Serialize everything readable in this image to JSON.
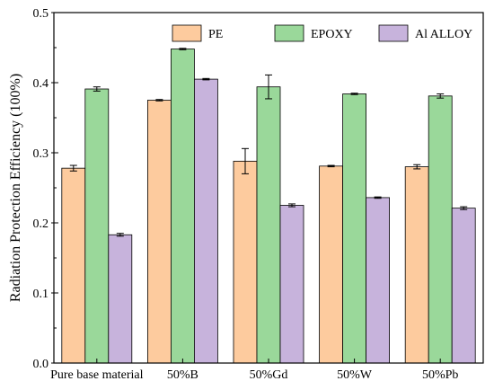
{
  "chart_data": {
    "type": "bar",
    "categories": [
      "Pure base material",
      "50%B",
      "50%Gd",
      "50%W",
      "50%Pb"
    ],
    "series": [
      {
        "name": "PE",
        "color": "#FDCB9E",
        "values": [
          0.278,
          0.375,
          0.288,
          0.281,
          0.28
        ],
        "errors": [
          0.004,
          0.001,
          0.018,
          0.001,
          0.003
        ]
      },
      {
        "name": "EPOXY",
        "color": "#9AD89A",
        "values": [
          0.391,
          0.448,
          0.394,
          0.384,
          0.381
        ],
        "errors": [
          0.003,
          0.001,
          0.017,
          0.001,
          0.003
        ]
      },
      {
        "name": "Al ALLOY",
        "color": "#C7B3DC",
        "values": [
          0.183,
          0.405,
          0.225,
          0.236,
          0.221
        ],
        "errors": [
          0.002,
          0.001,
          0.002,
          0.001,
          0.002
        ]
      }
    ],
    "ylabel": "Radiation Protection Efficiency (100%)",
    "xlabel": "",
    "title": "",
    "ylim": [
      0.0,
      0.5
    ],
    "yticks": [
      "0.0",
      "0.1",
      "0.2",
      "0.3",
      "0.4",
      "0.5"
    ],
    "grid": false,
    "legend_position": "top-right"
  }
}
